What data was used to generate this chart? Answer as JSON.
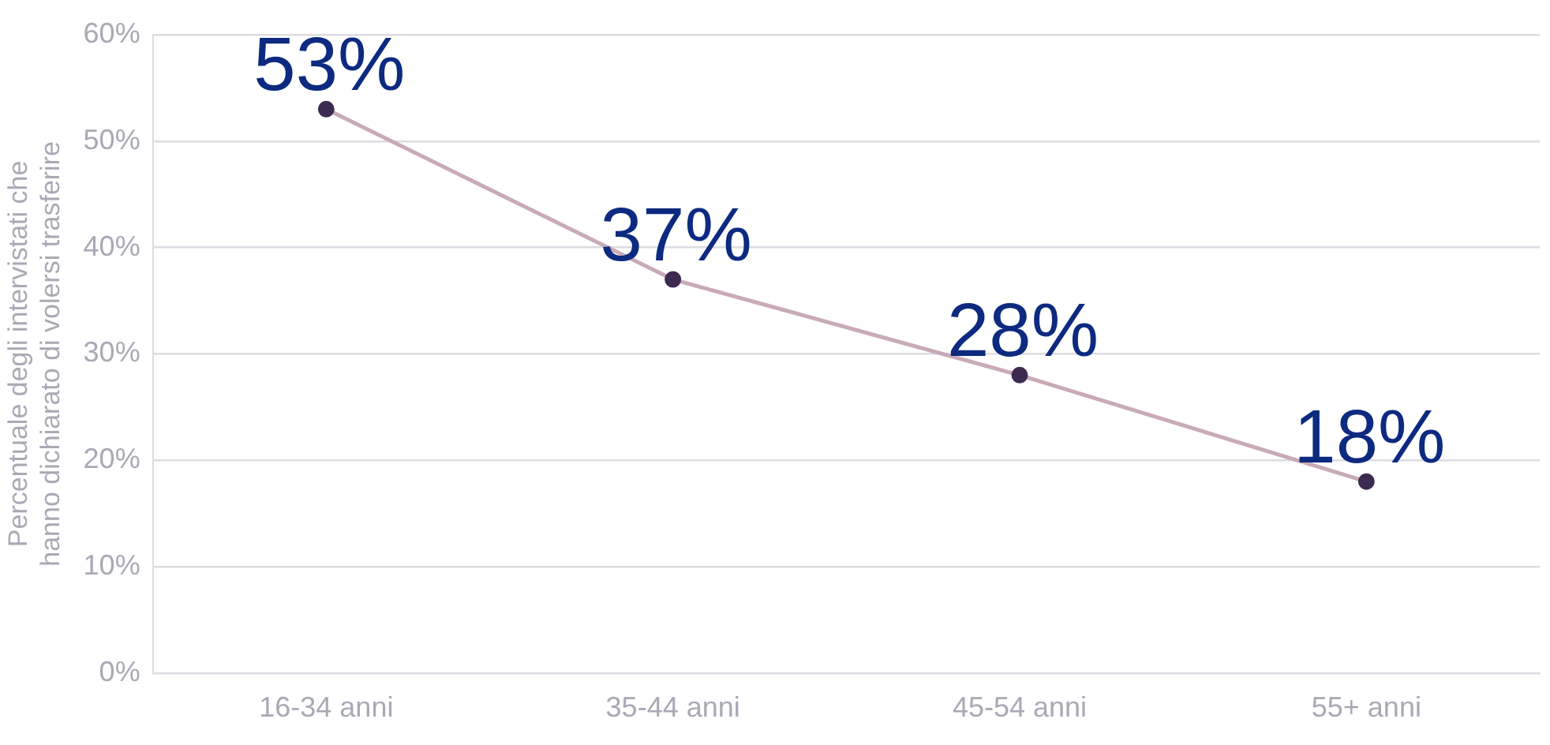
{
  "chart_data": {
    "type": "line",
    "ylabel": "Percentuale degli intervistati che hanno dichiarato di volersi trasferire",
    "categories": [
      "16-34 anni",
      "35-44 anni",
      "45-54 anni",
      "55+ anni"
    ],
    "series": [
      {
        "color": "#c9aab9",
        "values": [
          53,
          37,
          28,
          18
        ],
        "value_labels": [
          "53%",
          "37%",
          "28%",
          "18%"
        ]
      }
    ],
    "ylim": [
      0,
      60
    ],
    "yticks": [
      {
        "value": 0,
        "label": "0%"
      },
      {
        "value": 10,
        "label": "10%"
      },
      {
        "value": 20,
        "label": "20%"
      },
      {
        "value": 30,
        "label": "30%"
      },
      {
        "value": 40,
        "label": "40%"
      },
      {
        "value": 50,
        "label": "50%"
      },
      {
        "value": 60,
        "label": "60%"
      }
    ],
    "grid": "y",
    "legend": false,
    "marker": "circle",
    "line_style": "solid"
  }
}
